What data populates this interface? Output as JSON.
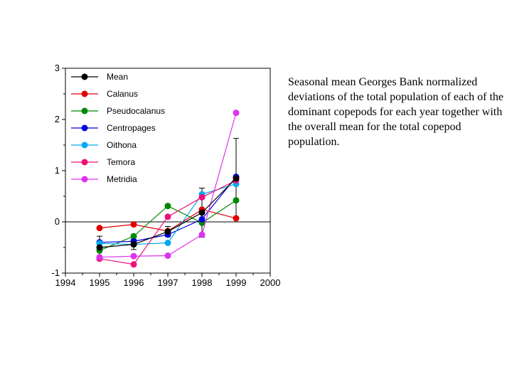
{
  "caption": "Seasonal mean Georges Bank normalized deviations of the total population of each of the dominant copepods for each year together with the overall mean for the total copepod population.",
  "chart_data": {
    "type": "line",
    "xlim": [
      1994,
      2000
    ],
    "ylim": [
      -1,
      3
    ],
    "x_ticks": [
      1994,
      1995,
      1996,
      1997,
      1998,
      1999,
      2000
    ],
    "y_ticks": [
      -1,
      0,
      1,
      2,
      3
    ],
    "zero_line": true,
    "grid": false,
    "legend_position": "top-left",
    "x": [
      1995,
      1996,
      1997,
      1998,
      1999
    ],
    "series": [
      {
        "name": "Mean",
        "color": "#000000",
        "values": [
          -0.5,
          -0.44,
          -0.19,
          0.18,
          0.85
        ],
        "error": [
          0.22,
          0.1,
          0.1,
          0.48,
          0.78
        ]
      },
      {
        "name": "Calanus",
        "color": "#e00000",
        "values": [
          -0.12,
          -0.05,
          -0.18,
          0.24,
          0.07
        ]
      },
      {
        "name": "Pseudocalanus",
        "color": "#008800",
        "values": [
          -0.56,
          -0.28,
          0.31,
          -0.02,
          0.42
        ]
      },
      {
        "name": "Centropages",
        "color": "#0000dd",
        "values": [
          -0.4,
          -0.38,
          -0.25,
          0.05,
          0.88
        ]
      },
      {
        "name": "Oithona",
        "color": "#00aaee",
        "values": [
          -0.42,
          -0.44,
          -0.41,
          0.54,
          0.74
        ]
      },
      {
        "name": "Temora",
        "color": "#ee1177",
        "values": [
          -0.72,
          -0.83,
          0.1,
          0.48,
          0.81
        ]
      },
      {
        "name": "Metridia",
        "color": "#dd33ee",
        "values": [
          -0.69,
          -0.67,
          -0.66,
          -0.25,
          2.13
        ]
      }
    ]
  }
}
